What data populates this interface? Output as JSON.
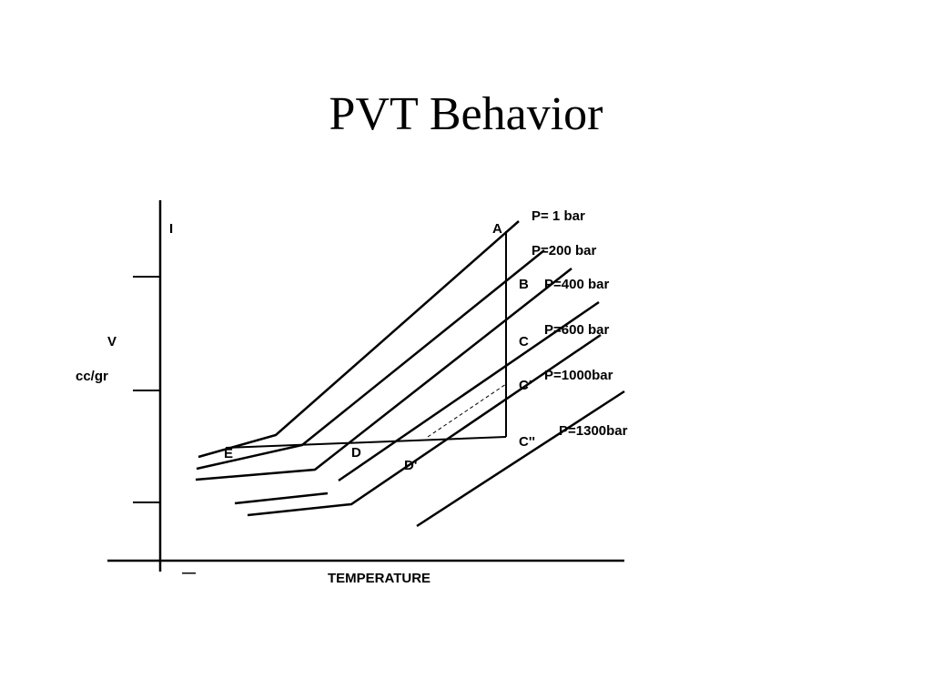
{
  "title": "PVT Behavior",
  "diagram": {
    "y_axis_label": "V",
    "y_axis_unit": "cc/gr",
    "x_axis_label": "TEMPERATURE",
    "y_axis_top_mark": "I",
    "x_axis_left_mark": "—",
    "isobars": [
      {
        "label": "P= 1 bar"
      },
      {
        "label": "P=200 bar"
      },
      {
        "label": "P=400 bar"
      },
      {
        "label": "P=600 bar"
      },
      {
        "label": "P=1000bar"
      },
      {
        "label": "P=1300bar"
      }
    ],
    "points": {
      "A": "A",
      "B": "B",
      "C": "C",
      "C1": "C'",
      "C2": "C''",
      "D": "D",
      "D1": "D'",
      "E": "E"
    }
  }
}
